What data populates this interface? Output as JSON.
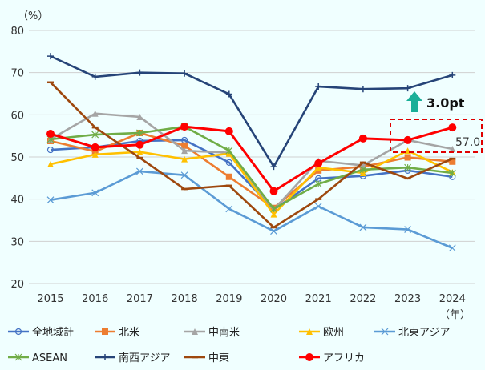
{
  "chart_data": {
    "type": "line",
    "ylabel": "（%）",
    "xlabel": "（年）",
    "ylim": [
      20,
      80
    ],
    "yticks": [
      20,
      30,
      40,
      50,
      60,
      70,
      80
    ],
    "grid": true,
    "legend_position": "bottom",
    "categories": [
      "2015",
      "2016",
      "2017",
      "2018",
      "2019",
      "2020",
      "2021",
      "2022",
      "2023",
      "2024"
    ],
    "series": [
      {
        "name": "全地域計",
        "color": "#4472c4",
        "marker": "circle-open",
        "values": [
          51.7,
          52.3,
          53.8,
          54.0,
          48.7,
          37.5,
          44.9,
          45.5,
          46.8,
          45.3
        ]
      },
      {
        "name": "北米",
        "color": "#ed7d31",
        "marker": "square",
        "values": [
          53.8,
          51.3,
          55.7,
          52.7,
          45.3,
          37.9,
          46.8,
          47.7,
          49.9,
          48.9
        ]
      },
      {
        "name": "中南米",
        "color": "#a5a5a5",
        "marker": "triangle",
        "values": [
          54.2,
          60.3,
          59.5,
          51.5,
          51.0,
          37.5,
          49.1,
          48.0,
          54.0,
          51.9
        ]
      },
      {
        "name": "欧州",
        "color": "#ffc000",
        "marker": "triangle",
        "values": [
          48.3,
          50.6,
          51.2,
          49.5,
          50.8,
          36.4,
          47.5,
          46.2,
          51.5,
          46.4
        ]
      },
      {
        "name": "北東アジア",
        "color": "#5b9bd5",
        "marker": "x",
        "values": [
          39.8,
          41.5,
          46.6,
          45.7,
          37.7,
          32.4,
          38.3,
          33.3,
          32.8,
          28.4
        ]
      },
      {
        "name": "ASEAN",
        "color": "#70ad47",
        "marker": "asterisk",
        "values": [
          54.2,
          55.3,
          55.7,
          57.2,
          51.5,
          37.7,
          43.6,
          47.0,
          47.5,
          46.2
        ]
      },
      {
        "name": "南西アジア",
        "color": "#264478",
        "marker": "plus",
        "values": [
          73.9,
          69.0,
          70.0,
          69.8,
          64.9,
          47.7,
          66.7,
          66.1,
          66.3,
          69.4
        ]
      },
      {
        "name": "中東",
        "color": "#9e480e",
        "marker": "dash",
        "values": [
          67.7,
          57.0,
          49.8,
          42.4,
          43.2,
          33.3,
          40.0,
          48.7,
          44.9,
          49.6
        ]
      },
      {
        "name": "アフリカ",
        "color": "#ff0000",
        "marker": "circle",
        "values": [
          55.5,
          52.3,
          52.9,
          57.2,
          56.1,
          41.9,
          48.5,
          54.4,
          54.0,
          57.0
        ]
      }
    ],
    "annotations": {
      "change_label": "3.0pt",
      "change_color": "#1aaf98",
      "highlight_value": "57.0",
      "highlight_color": "#e00000"
    }
  }
}
